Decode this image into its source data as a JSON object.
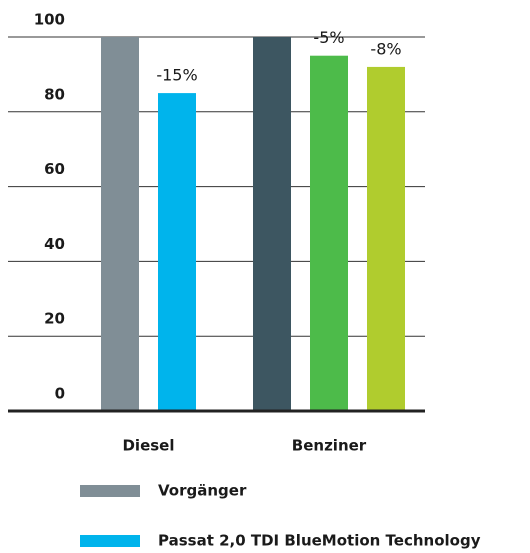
{
  "chart_data": {
    "type": "bar",
    "ylim": [
      0,
      100
    ],
    "yticks": [
      0,
      20,
      40,
      60,
      80,
      100
    ],
    "grid": true,
    "groups": [
      {
        "name": "Diesel",
        "bars": [
          {
            "value": 100,
            "color": "#808e96"
          },
          {
            "value": 85,
            "color": "#00b4ec",
            "annotation": "-15%"
          }
        ]
      },
      {
        "name": "Benziner",
        "bars": [
          {
            "value": 100,
            "color": "#3d5661"
          },
          {
            "value": 95,
            "color": "#4dbb4a",
            "annotation": "-5%"
          },
          {
            "value": 92,
            "color": "#b0cc2e",
            "annotation": "-8%"
          }
        ]
      }
    ],
    "legend": [
      {
        "name": "Vorgänger",
        "color": "#808e96"
      },
      {
        "name": "Passat 2,0 TDI BlueMotion Technology",
        "color": "#00b4ec"
      }
    ]
  }
}
